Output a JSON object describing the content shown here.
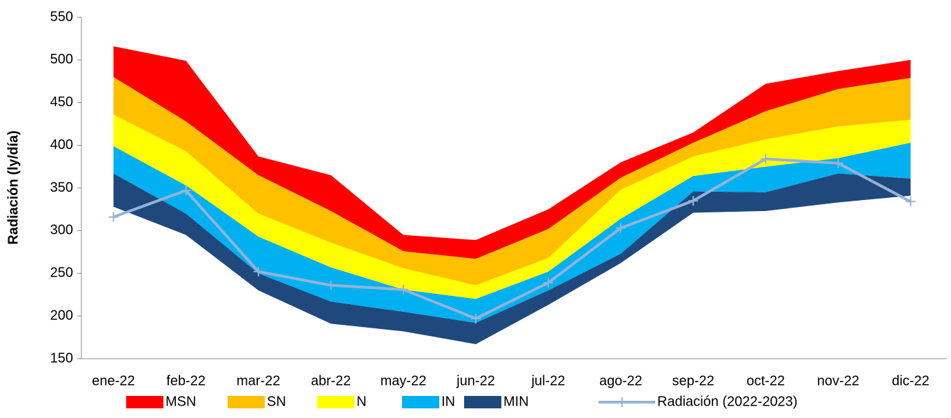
{
  "chart_data": {
    "type": "stacked_band_line",
    "y_label": "Radiación (ly/día)",
    "categories": [
      "ene-22",
      "feb-22",
      "mar-22",
      "abr-22",
      "may-22",
      "jun-22",
      "jul-22",
      "ago-22",
      "sep-22",
      "oct-22",
      "nov-22",
      "dic-22"
    ],
    "baseline": [
      328,
      295,
      230,
      191,
      182,
      167,
      213,
      262,
      321,
      323,
      333,
      341
    ],
    "series": [
      {
        "name": "MIN",
        "color": "#1f497d",
        "values": [
          367,
          320,
          250,
          217,
          205,
          192,
          230,
          273,
          346,
          345,
          367,
          361
        ]
      },
      {
        "name": "IN",
        "color": "#00b0f0",
        "values": [
          399,
          353,
          293,
          257,
          231,
          220,
          252,
          314,
          364,
          375,
          385,
          403
        ]
      },
      {
        "name": "N",
        "color": "#ffff00",
        "values": [
          436,
          393,
          320,
          286,
          256,
          236,
          268,
          348,
          387,
          407,
          422,
          430
        ]
      },
      {
        "name": "SN",
        "color": "#ffc000",
        "values": [
          480,
          428,
          365,
          323,
          276,
          267,
          302,
          362,
          403,
          440,
          466,
          479
        ]
      },
      {
        "name": "MSN",
        "color": "#ff0000",
        "values": [
          516,
          499,
          387,
          365,
          295,
          289,
          325,
          380,
          415,
          472,
          487,
          500
        ]
      }
    ],
    "line": {
      "name": "Radiación (2022-2023)",
      "color": "#95b3d7",
      "values": [
        316,
        347,
        252,
        236,
        231,
        197,
        239,
        303,
        335,
        384,
        379,
        334
      ]
    },
    "ylim": [
      150,
      550
    ],
    "yticks": [
      150,
      200,
      250,
      300,
      350,
      400,
      450,
      500,
      550
    ],
    "grid": false
  }
}
